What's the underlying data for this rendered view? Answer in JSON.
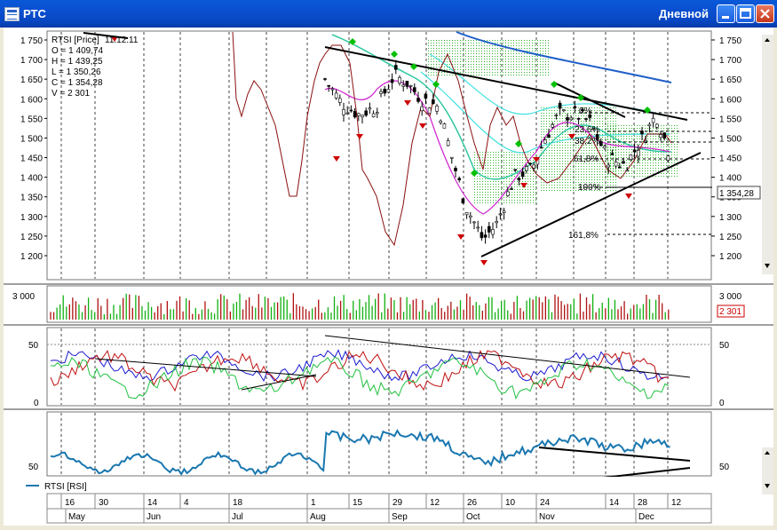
{
  "window": {
    "title": "РТС",
    "period": "Дневной",
    "minimize": "minimize",
    "maximize": "maximize",
    "close": "close"
  },
  "price_panel": {
    "legend_title": "RTSI [Price]",
    "legend_extra": "11.12.11",
    "ohlc": {
      "o": "O = 1 409,74",
      "h": "H = 1 439,25",
      "l": "L = 1 350,26",
      "c": "C = 1 354,28",
      "v": "V = 2 301"
    },
    "last_price": "1 354,28",
    "y_ticks": [
      "1 750",
      "1 700",
      "1 650",
      "1 600",
      "1 550",
      "1 500",
      "1 450",
      "1 400",
      "1 350",
      "1 300",
      "1 250",
      "1 200"
    ],
    "fib_labels": [
      "0%",
      "23,6%",
      "38,2%",
      "61,8%",
      "100%",
      "161,8%"
    ]
  },
  "volume_panel": {
    "y_tick": "3 000",
    "last_volume": "2 301"
  },
  "osc_panel": {
    "y_ticks": [
      "50",
      "0"
    ]
  },
  "rsi_panel": {
    "y_tick": "50",
    "legend": "RTSI [RSI]"
  },
  "time_axis": {
    "days": [
      "16",
      "30",
      "14",
      "4",
      "18",
      "1",
      "15",
      "29",
      "12",
      "26",
      "10",
      "24",
      "14",
      "28",
      "12"
    ],
    "months": [
      "May",
      "Jun",
      "Jul",
      "Aug",
      "Sep",
      "Oct",
      "Nov",
      "Dec"
    ]
  },
  "colors": {
    "up": "#00b000",
    "down": "#c00000",
    "ma_long": "#1f5fc8",
    "band": "#30c8a0",
    "rsi": "#1a77b0"
  }
}
